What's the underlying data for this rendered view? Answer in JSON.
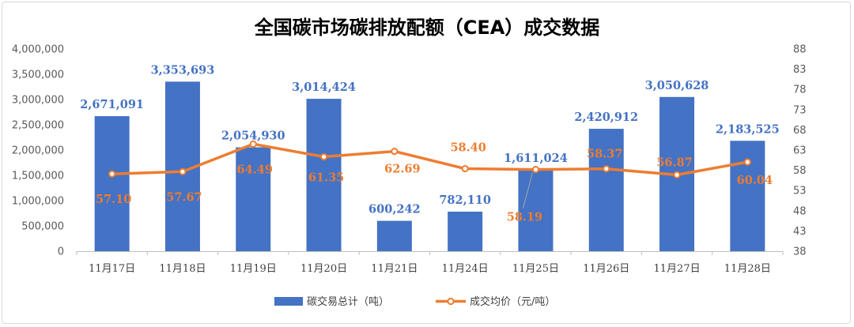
{
  "chart_data": {
    "type": "bar",
    "title": "全国碳市场碳排放配额（CEA）成交数据",
    "categories": [
      "11月17日",
      "11月18日",
      "11月19日",
      "11月20日",
      "11月21日",
      "11月24日",
      "11月25日",
      "11月26日",
      "11月27日",
      "11月28日"
    ],
    "series": [
      {
        "name": "碳交易总计（吨）",
        "type": "bar",
        "axis": "left",
        "color": "#4472c4",
        "values": [
          2671091,
          3353693,
          2054930,
          3014424,
          600242,
          782110,
          1611024,
          2420912,
          3050628,
          2183525
        ],
        "labels": [
          "2,671,091",
          "3,353,693",
          "2,054,930",
          "3,014,424",
          "600,242",
          "782,110",
          "1,611,024",
          "2,420,912",
          "3,050,628",
          "2,183,525"
        ]
      },
      {
        "name": "成交均价（元/吨）",
        "type": "line",
        "axis": "right",
        "color": "#ed7d31",
        "values": [
          57.1,
          57.67,
          64.49,
          61.35,
          62.69,
          58.4,
          58.19,
          58.37,
          56.87,
          60.04
        ],
        "labels": [
          "57.10",
          "57.67",
          "64.49",
          "61.35",
          "62.69",
          "58.40",
          "58.19",
          "58.37",
          "56.87",
          "60.04"
        ]
      }
    ],
    "y_left": {
      "min": 0,
      "max": 4000000,
      "step": 500000,
      "ticks": [
        "0",
        "500,000",
        "1,000,000",
        "1,500,000",
        "2,000,000",
        "2,500,000",
        "3,000,000",
        "3,500,000",
        "4,000,000"
      ]
    },
    "y_right": {
      "min": 38,
      "max": 88,
      "step": 5,
      "ticks": [
        "38",
        "43",
        "48",
        "53",
        "58",
        "63",
        "68",
        "73",
        "78",
        "83",
        "88"
      ]
    },
    "grid": false,
    "legend_position": "bottom"
  }
}
